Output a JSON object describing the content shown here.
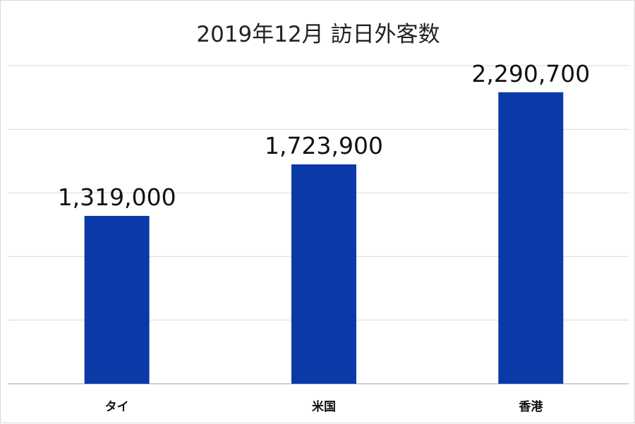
{
  "chart_data": {
    "type": "bar",
    "title": "2019年12月 訪日外客数",
    "categories": [
      "タイ",
      "米国",
      "香港"
    ],
    "values": [
      1319000,
      1723900,
      2290700
    ],
    "value_labels": [
      "1,319,000",
      "1,723,900",
      "2,290,700"
    ],
    "ylim": [
      0,
      2500000
    ],
    "grid": true,
    "legend": "none",
    "bar_color": "#0b39a8",
    "grid_color": "#d9d9d9",
    "axis_color": "#bfbfbf"
  }
}
